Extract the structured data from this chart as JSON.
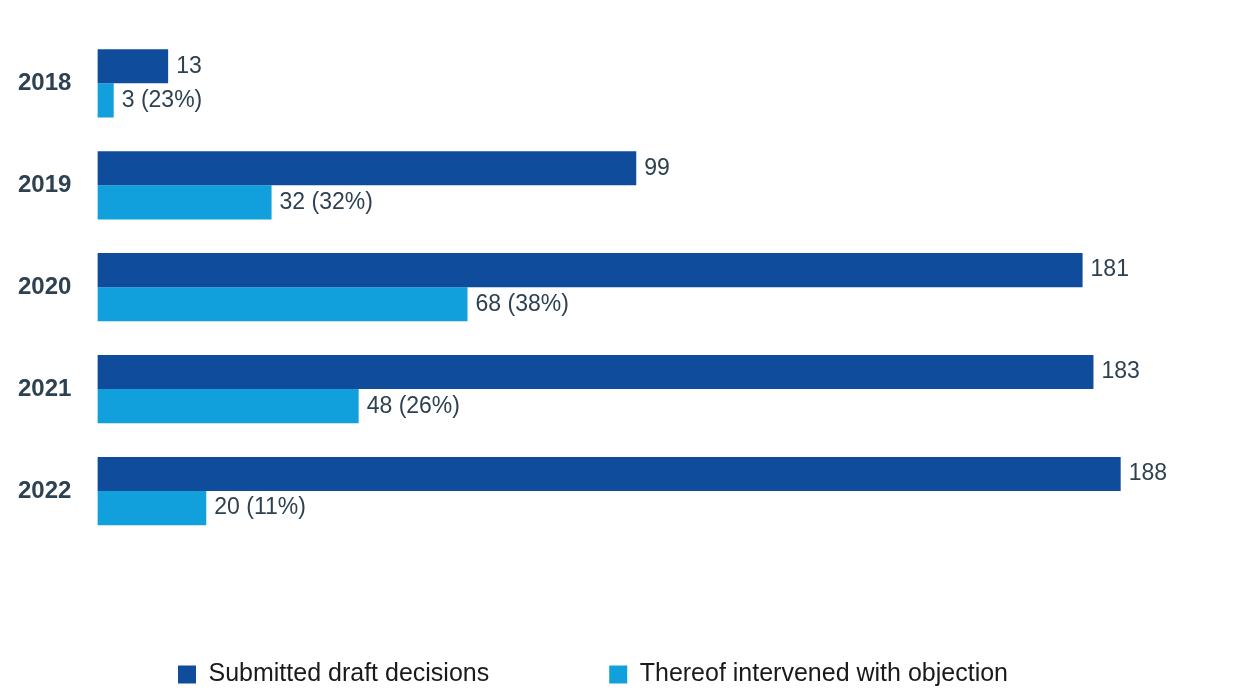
{
  "chart_data": {
    "type": "bar",
    "orientation": "horizontal",
    "categories": [
      "2018",
      "2019",
      "2020",
      "2021",
      "2022"
    ],
    "tick_labels": "y",
    "legend": "bottom",
    "series": [
      {
        "name": "Submitted draft decisions",
        "color": "#0f4c9b",
        "values": [
          13,
          99,
          181,
          183,
          188
        ],
        "value_labels": [
          "13",
          "99",
          "181",
          "183",
          "188"
        ]
      },
      {
        "name": "Thereof intervened with objection",
        "color": "#12a0dc",
        "values": [
          3,
          32,
          68,
          48,
          20
        ],
        "value_labels": [
          "3 (23%)",
          "32 (32%)",
          "68 (38%)",
          "48 (26%)",
          "20 (11%)"
        ]
      }
    ]
  }
}
